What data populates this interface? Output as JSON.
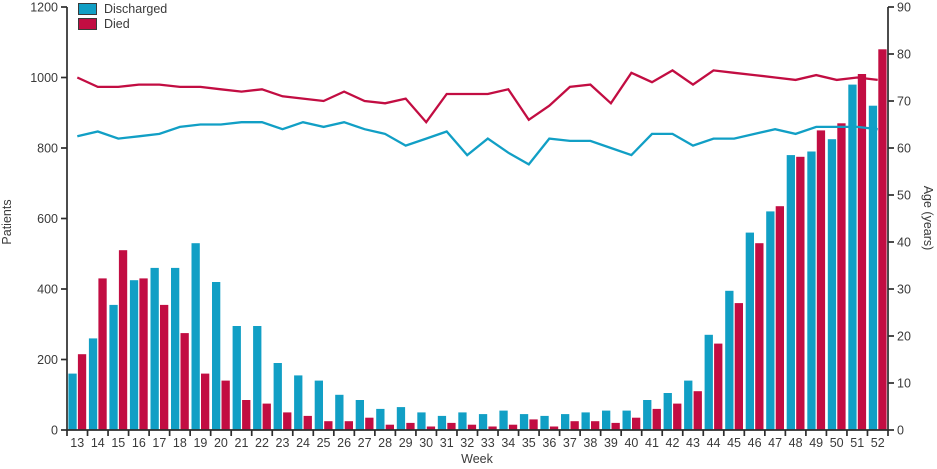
{
  "chart_data": {
    "type": "bar+line",
    "title": "",
    "xlabel": "Week",
    "ylabel_left": "Patients",
    "ylabel_right": "Age (years)",
    "weeks": [
      13,
      14,
      15,
      16,
      17,
      18,
      19,
      20,
      21,
      22,
      23,
      24,
      25,
      26,
      27,
      28,
      29,
      30,
      31,
      32,
      33,
      34,
      35,
      36,
      37,
      38,
      39,
      40,
      41,
      42,
      43,
      44,
      45,
      46,
      47,
      48,
      49,
      50,
      51,
      52
    ],
    "bar_series": [
      {
        "name": "Discharged",
        "axis": "left",
        "color": "#119FC5",
        "values": [
          160,
          260,
          355,
          425,
          460,
          460,
          530,
          420,
          295,
          295,
          190,
          155,
          140,
          100,
          85,
          60,
          65,
          50,
          40,
          50,
          45,
          55,
          45,
          40,
          45,
          50,
          55,
          55,
          85,
          105,
          140,
          270,
          395,
          560,
          620,
          780,
          790,
          825,
          980,
          920
        ]
      },
      {
        "name": "Died",
        "axis": "left",
        "color": "#C20D42",
        "values": [
          215,
          430,
          510,
          430,
          355,
          275,
          160,
          140,
          85,
          75,
          50,
          40,
          25,
          25,
          35,
          15,
          20,
          10,
          20,
          15,
          10,
          15,
          30,
          10,
          25,
          25,
          20,
          35,
          60,
          75,
          110,
          245,
          360,
          530,
          635,
          775,
          850,
          870,
          1010,
          1080
        ]
      }
    ],
    "line_series": [
      {
        "name": "Discharged age",
        "axis": "right",
        "color": "#119FC5",
        "values": [
          62.5,
          63.5,
          62,
          62.5,
          63,
          64.5,
          65,
          65,
          65.5,
          65.5,
          64,
          65.5,
          64.5,
          65.5,
          64,
          63,
          60.5,
          62,
          63.5,
          58.5,
          62,
          59,
          56.5,
          62,
          61.5,
          61.5,
          60,
          58.5,
          63,
          63,
          60.5,
          62,
          62,
          63,
          64,
          63,
          64.5,
          64.5,
          64.5,
          64
        ]
      },
      {
        "name": "Died age",
        "axis": "right",
        "color": "#C20D42",
        "values": [
          75,
          73,
          73,
          73.5,
          73.5,
          73,
          73,
          72.5,
          72,
          72.5,
          71,
          70.5,
          70,
          72,
          70,
          69.5,
          70.5,
          65.5,
          71.5,
          71.5,
          71.5,
          72.5,
          66,
          69,
          73,
          73.5,
          69.5,
          76,
          74,
          76.5,
          73.5,
          76.5,
          76,
          75.5,
          75,
          74.5,
          75.5,
          74.5,
          75,
          74.5
        ]
      }
    ],
    "left_axis": {
      "min": 0,
      "max": 1200,
      "ticks": [
        0,
        200,
        400,
        600,
        800,
        1000,
        1200
      ]
    },
    "right_axis": {
      "min": 0,
      "max": 90,
      "ticks": [
        0,
        10,
        20,
        30,
        40,
        50,
        60,
        70,
        80,
        90
      ]
    },
    "legend": {
      "position": "top-left",
      "items": [
        {
          "label": "Discharged",
          "color": "#119FC5"
        },
        {
          "label": "Died",
          "color": "#C20D42"
        }
      ]
    },
    "grid": "off",
    "colors": {
      "axis": "#2D2D2D",
      "text": "#3A3A3A"
    }
  }
}
